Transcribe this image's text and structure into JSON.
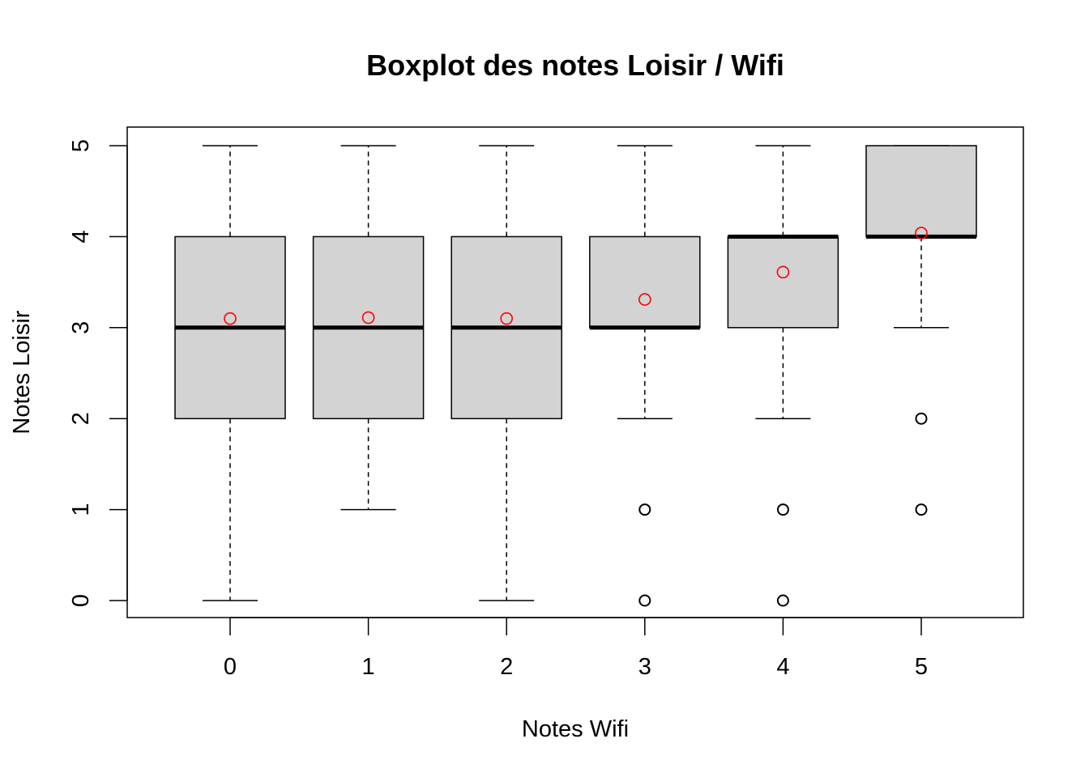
{
  "chart_data": {
    "type": "boxplot",
    "title": "Boxplot des notes Loisir / Wifi",
    "xlabel": "Notes Wifi",
    "ylabel": "Notes Loisir",
    "ylim": [
      -0.19,
      5.19
    ],
    "yticks": [
      "0",
      "1",
      "2",
      "3",
      "4",
      "5"
    ],
    "grid": false,
    "legend": "none",
    "colors": {
      "box_fill": "#d3d3d3",
      "box_stroke": "#000000",
      "mean_marker": "#ff0000",
      "outlier": "#000000"
    },
    "groups": [
      {
        "category": "0",
        "min": 0,
        "q1": 2,
        "median": 3,
        "q3": 4,
        "max": 5,
        "mean": 3.1,
        "outliers": []
      },
      {
        "category": "1",
        "min": 1,
        "q1": 2,
        "median": 3,
        "q3": 4,
        "max": 5,
        "mean": 3.11,
        "outliers": []
      },
      {
        "category": "2",
        "min": 0,
        "q1": 2,
        "median": 3,
        "q3": 4,
        "max": 5,
        "mean": 3.1,
        "outliers": []
      },
      {
        "category": "3",
        "min": 2,
        "q1": 3,
        "median": 3,
        "q3": 4,
        "max": 5,
        "mean": 3.31,
        "outliers": [
          1,
          0
        ]
      },
      {
        "category": "4",
        "min": 2,
        "q1": 3,
        "median": 4,
        "q3": 4,
        "max": 5,
        "mean": 3.61,
        "outliers": [
          1,
          0
        ]
      },
      {
        "category": "5",
        "min": 3,
        "q1": 4,
        "median": 4,
        "q3": 5,
        "max": 5,
        "mean": 4.04,
        "outliers": [
          2,
          1
        ]
      }
    ]
  }
}
